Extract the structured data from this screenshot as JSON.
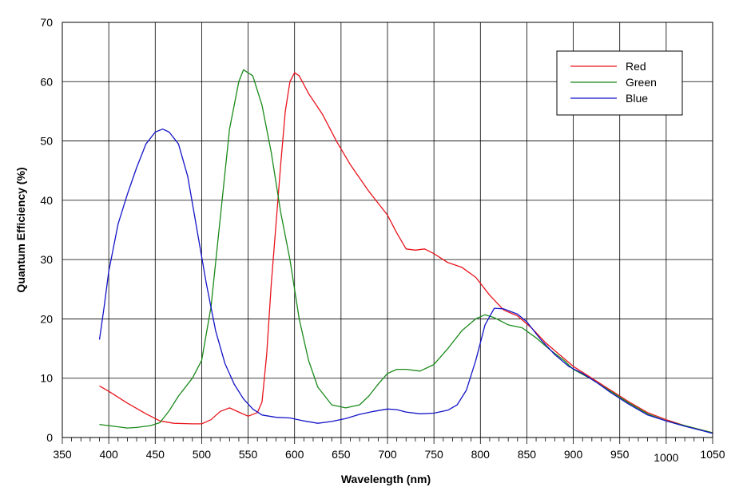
{
  "chart_data": {
    "type": "line",
    "title": "",
    "xlabel": "Wavelength (nm)",
    "ylabel": "Quantum Efficiency (%)",
    "xlim": [
      350,
      1050
    ],
    "ylim": [
      0,
      70
    ],
    "x_ticks": [
      "350",
      "400",
      "450",
      "500",
      "550",
      "600",
      "650",
      "700",
      "750",
      "800",
      "850",
      "900",
      "950",
      "1000",
      "1050"
    ],
    "y_ticks": [
      "0",
      "10",
      "20",
      "30",
      "40",
      "50",
      "60",
      "70"
    ],
    "grid": true,
    "legend_position": "top-right",
    "series": [
      {
        "name": "Red",
        "color": "#e8141c",
        "points": [
          [
            390,
            8.7
          ],
          [
            400,
            7.8
          ],
          [
            420,
            5.8
          ],
          [
            440,
            4.0
          ],
          [
            455,
            2.8
          ],
          [
            470,
            2.4
          ],
          [
            490,
            2.3
          ],
          [
            500,
            2.3
          ],
          [
            510,
            3.0
          ],
          [
            520,
            4.4
          ],
          [
            530,
            5.0
          ],
          [
            540,
            4.3
          ],
          [
            550,
            3.6
          ],
          [
            560,
            4.2
          ],
          [
            565,
            6.0
          ],
          [
            570,
            14
          ],
          [
            575,
            26
          ],
          [
            580,
            36
          ],
          [
            585,
            46
          ],
          [
            590,
            55
          ],
          [
            595,
            60
          ],
          [
            600,
            61.5
          ],
          [
            605,
            61
          ],
          [
            615,
            58
          ],
          [
            630,
            54.5
          ],
          [
            645,
            50
          ],
          [
            660,
            46
          ],
          [
            680,
            41.5
          ],
          [
            700,
            37.5
          ],
          [
            710,
            34.5
          ],
          [
            720,
            31.8
          ],
          [
            730,
            31.6
          ],
          [
            740,
            31.8
          ],
          [
            750,
            31
          ],
          [
            765,
            29.5
          ],
          [
            780,
            28.7
          ],
          [
            795,
            27
          ],
          [
            810,
            24
          ],
          [
            825,
            21.5
          ],
          [
            840,
            20.5
          ],
          [
            855,
            18.5
          ],
          [
            870,
            16
          ],
          [
            885,
            14
          ],
          [
            900,
            12
          ],
          [
            920,
            10
          ],
          [
            940,
            8
          ],
          [
            960,
            6
          ],
          [
            980,
            4.2
          ],
          [
            1000,
            3
          ],
          [
            1020,
            2
          ],
          [
            1040,
            1.2
          ],
          [
            1050,
            0.8
          ]
        ]
      },
      {
        "name": "Green",
        "color": "#1a8a1a",
        "points": [
          [
            390,
            2.2
          ],
          [
            400,
            2.0
          ],
          [
            420,
            1.6
          ],
          [
            430,
            1.7
          ],
          [
            445,
            2.0
          ],
          [
            455,
            2.5
          ],
          [
            465,
            4.5
          ],
          [
            475,
            7
          ],
          [
            490,
            10
          ],
          [
            500,
            13
          ],
          [
            510,
            22
          ],
          [
            520,
            37
          ],
          [
            530,
            52
          ],
          [
            540,
            60
          ],
          [
            545,
            62
          ],
          [
            555,
            61
          ],
          [
            565,
            56
          ],
          [
            575,
            48
          ],
          [
            585,
            38
          ],
          [
            595,
            30
          ],
          [
            605,
            20
          ],
          [
            615,
            13
          ],
          [
            625,
            8.5
          ],
          [
            640,
            5.5
          ],
          [
            655,
            5
          ],
          [
            670,
            5.5
          ],
          [
            680,
            7
          ],
          [
            690,
            9
          ],
          [
            700,
            10.8
          ],
          [
            710,
            11.5
          ],
          [
            720,
            11.5
          ],
          [
            735,
            11.2
          ],
          [
            750,
            12.3
          ],
          [
            765,
            15
          ],
          [
            780,
            18
          ],
          [
            795,
            20
          ],
          [
            805,
            20.7
          ],
          [
            815,
            20.2
          ],
          [
            830,
            19
          ],
          [
            845,
            18.5
          ],
          [
            860,
            16.8
          ],
          [
            875,
            14.8
          ],
          [
            890,
            13
          ],
          [
            900,
            11.5
          ],
          [
            920,
            9.8
          ],
          [
            940,
            7.8
          ],
          [
            960,
            5.8
          ],
          [
            980,
            4.0
          ],
          [
            1000,
            2.8
          ],
          [
            1020,
            2.0
          ],
          [
            1040,
            1.2
          ],
          [
            1050,
            0.8
          ]
        ]
      },
      {
        "name": "Blue",
        "color": "#1414c8",
        "points": [
          [
            390,
            16.5
          ],
          [
            395,
            22
          ],
          [
            400,
            28
          ],
          [
            410,
            36
          ],
          [
            420,
            41
          ],
          [
            430,
            45.5
          ],
          [
            440,
            49.5
          ],
          [
            450,
            51.5
          ],
          [
            458,
            52
          ],
          [
            465,
            51.5
          ],
          [
            475,
            49.5
          ],
          [
            485,
            44
          ],
          [
            495,
            35
          ],
          [
            505,
            26
          ],
          [
            515,
            18
          ],
          [
            525,
            12.5
          ],
          [
            535,
            9
          ],
          [
            545,
            6.5
          ],
          [
            555,
            4.8
          ],
          [
            565,
            3.8
          ],
          [
            580,
            3.4
          ],
          [
            595,
            3.3
          ],
          [
            610,
            2.8
          ],
          [
            625,
            2.4
          ],
          [
            640,
            2.7
          ],
          [
            655,
            3.2
          ],
          [
            670,
            3.9
          ],
          [
            685,
            4.4
          ],
          [
            700,
            4.8
          ],
          [
            710,
            4.7
          ],
          [
            720,
            4.3
          ],
          [
            735,
            4.0
          ],
          [
            750,
            4.1
          ],
          [
            765,
            4.6
          ],
          [
            775,
            5.5
          ],
          [
            785,
            8
          ],
          [
            795,
            13
          ],
          [
            805,
            19
          ],
          [
            815,
            21.8
          ],
          [
            825,
            21.7
          ],
          [
            840,
            20.8
          ],
          [
            850,
            19.5
          ],
          [
            865,
            16.5
          ],
          [
            880,
            14
          ],
          [
            895,
            12
          ],
          [
            910,
            10.8
          ],
          [
            925,
            9.3
          ],
          [
            940,
            7.6
          ],
          [
            960,
            5.6
          ],
          [
            980,
            3.8
          ],
          [
            1000,
            2.8
          ],
          [
            1020,
            1.9
          ],
          [
            1040,
            1.1
          ],
          [
            1050,
            0.7
          ]
        ]
      }
    ]
  }
}
